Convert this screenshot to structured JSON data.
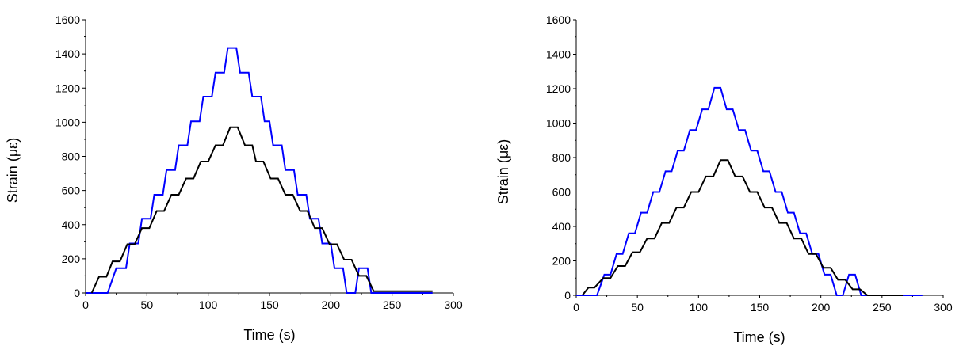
{
  "chart_data": [
    {
      "type": "line",
      "xlabel": "Time (s)",
      "ylabel": "Strain (με)",
      "xlim": [
        0,
        300
      ],
      "ylim": [
        0,
        1600
      ],
      "xticks": [
        0,
        50,
        100,
        150,
        200,
        250,
        300
      ],
      "yticks": [
        0,
        200,
        400,
        600,
        800,
        1000,
        1200,
        1400,
        1600
      ],
      "grid": false,
      "series": [
        {
          "color": "#0000ff",
          "x": [
            0,
            18,
            25,
            33,
            36,
            43,
            46,
            53,
            56,
            63,
            66,
            73,
            76,
            83,
            86,
            93,
            96,
            103,
            106,
            113,
            116,
            123,
            126,
            133,
            136,
            143,
            146,
            150,
            153,
            160,
            163,
            170,
            173,
            180,
            183,
            190,
            193,
            200,
            203,
            210,
            213,
            220,
            223,
            230,
            233,
            240,
            243,
            250,
            253,
            260,
            263,
            270,
            273,
            278,
            283
          ],
          "y": [
            0,
            0,
            145,
            145,
            290,
            290,
            435,
            435,
            575,
            575,
            720,
            720,
            865,
            865,
            1005,
            1005,
            1150,
            1150,
            1290,
            1290,
            1435,
            1435,
            1290,
            1290,
            1150,
            1150,
            1005,
            1005,
            865,
            865,
            720,
            720,
            575,
            575,
            435,
            435,
            290,
            290,
            145,
            145,
            0,
            0,
            145,
            145,
            0,
            0,
            0,
            0,
            0,
            0,
            0,
            0,
            0,
            0,
            0
          ]
        },
        {
          "color": "#000000",
          "x": [
            5,
            11,
            17,
            22,
            28,
            34,
            40,
            46,
            52,
            58,
            64,
            70,
            76,
            82,
            88,
            94,
            100,
            106,
            112,
            118,
            124,
            130,
            136,
            139,
            145,
            151,
            157,
            163,
            169,
            175,
            181,
            187,
            193,
            199,
            205,
            211,
            217,
            223,
            229,
            235,
            241,
            247,
            253,
            259,
            265,
            270,
            276,
            283
          ],
          "y": [
            0,
            95,
            95,
            185,
            185,
            285,
            285,
            380,
            380,
            480,
            480,
            575,
            575,
            670,
            670,
            770,
            770,
            865,
            865,
            970,
            970,
            865,
            865,
            770,
            770,
            670,
            670,
            575,
            575,
            480,
            480,
            380,
            380,
            285,
            285,
            195,
            195,
            100,
            100,
            10,
            10,
            10,
            10,
            10,
            10,
            10,
            10,
            10
          ]
        }
      ]
    },
    {
      "type": "line",
      "xlabel": "Time (s)",
      "ylabel": "Strain (με)",
      "xlim": [
        0,
        300
      ],
      "ylim": [
        0,
        1600
      ],
      "xticks": [
        0,
        50,
        100,
        150,
        200,
        250,
        300
      ],
      "yticks": [
        0,
        200,
        400,
        600,
        800,
        1000,
        1200,
        1400,
        1600
      ],
      "grid": false,
      "series": [
        {
          "color": "#0000ff",
          "x": [
            0,
            17,
            23,
            28,
            33,
            38,
            43,
            48,
            53,
            58,
            63,
            68,
            73,
            78,
            83,
            88,
            93,
            98,
            103,
            108,
            113,
            118,
            123,
            128,
            133,
            138,
            143,
            148,
            153,
            158,
            163,
            168,
            173,
            178,
            183,
            188,
            193,
            198,
            203,
            208,
            213,
            218,
            223,
            228,
            233,
            238,
            243,
            248,
            253,
            258,
            263,
            268,
            273,
            278,
            283
          ],
          "y": [
            0,
            0,
            120,
            120,
            240,
            240,
            360,
            360,
            480,
            480,
            600,
            600,
            720,
            720,
            840,
            840,
            960,
            960,
            1080,
            1080,
            1205,
            1205,
            1080,
            1080,
            960,
            960,
            840,
            840,
            720,
            720,
            600,
            600,
            480,
            480,
            360,
            360,
            240,
            240,
            120,
            120,
            0,
            0,
            120,
            120,
            0,
            0,
            0,
            0,
            0,
            0,
            0,
            0,
            0,
            0,
            0
          ]
        },
        {
          "color": "#000000",
          "x": [
            5,
            10,
            15,
            22,
            28,
            34,
            40,
            46,
            52,
            58,
            64,
            70,
            76,
            82,
            88,
            94,
            100,
            106,
            112,
            118,
            124,
            130,
            136,
            142,
            148,
            154,
            160,
            166,
            172,
            178,
            184,
            190,
            196,
            202,
            208,
            214,
            220,
            226,
            232,
            238,
            244,
            250,
            256,
            262,
            267
          ],
          "y": [
            0,
            45,
            45,
            100,
            100,
            170,
            170,
            250,
            250,
            330,
            330,
            420,
            420,
            510,
            510,
            600,
            600,
            690,
            690,
            785,
            785,
            690,
            690,
            600,
            600,
            510,
            510,
            420,
            420,
            330,
            330,
            240,
            240,
            160,
            160,
            90,
            90,
            35,
            35,
            0,
            0,
            0,
            0,
            0,
            0
          ]
        }
      ]
    }
  ]
}
